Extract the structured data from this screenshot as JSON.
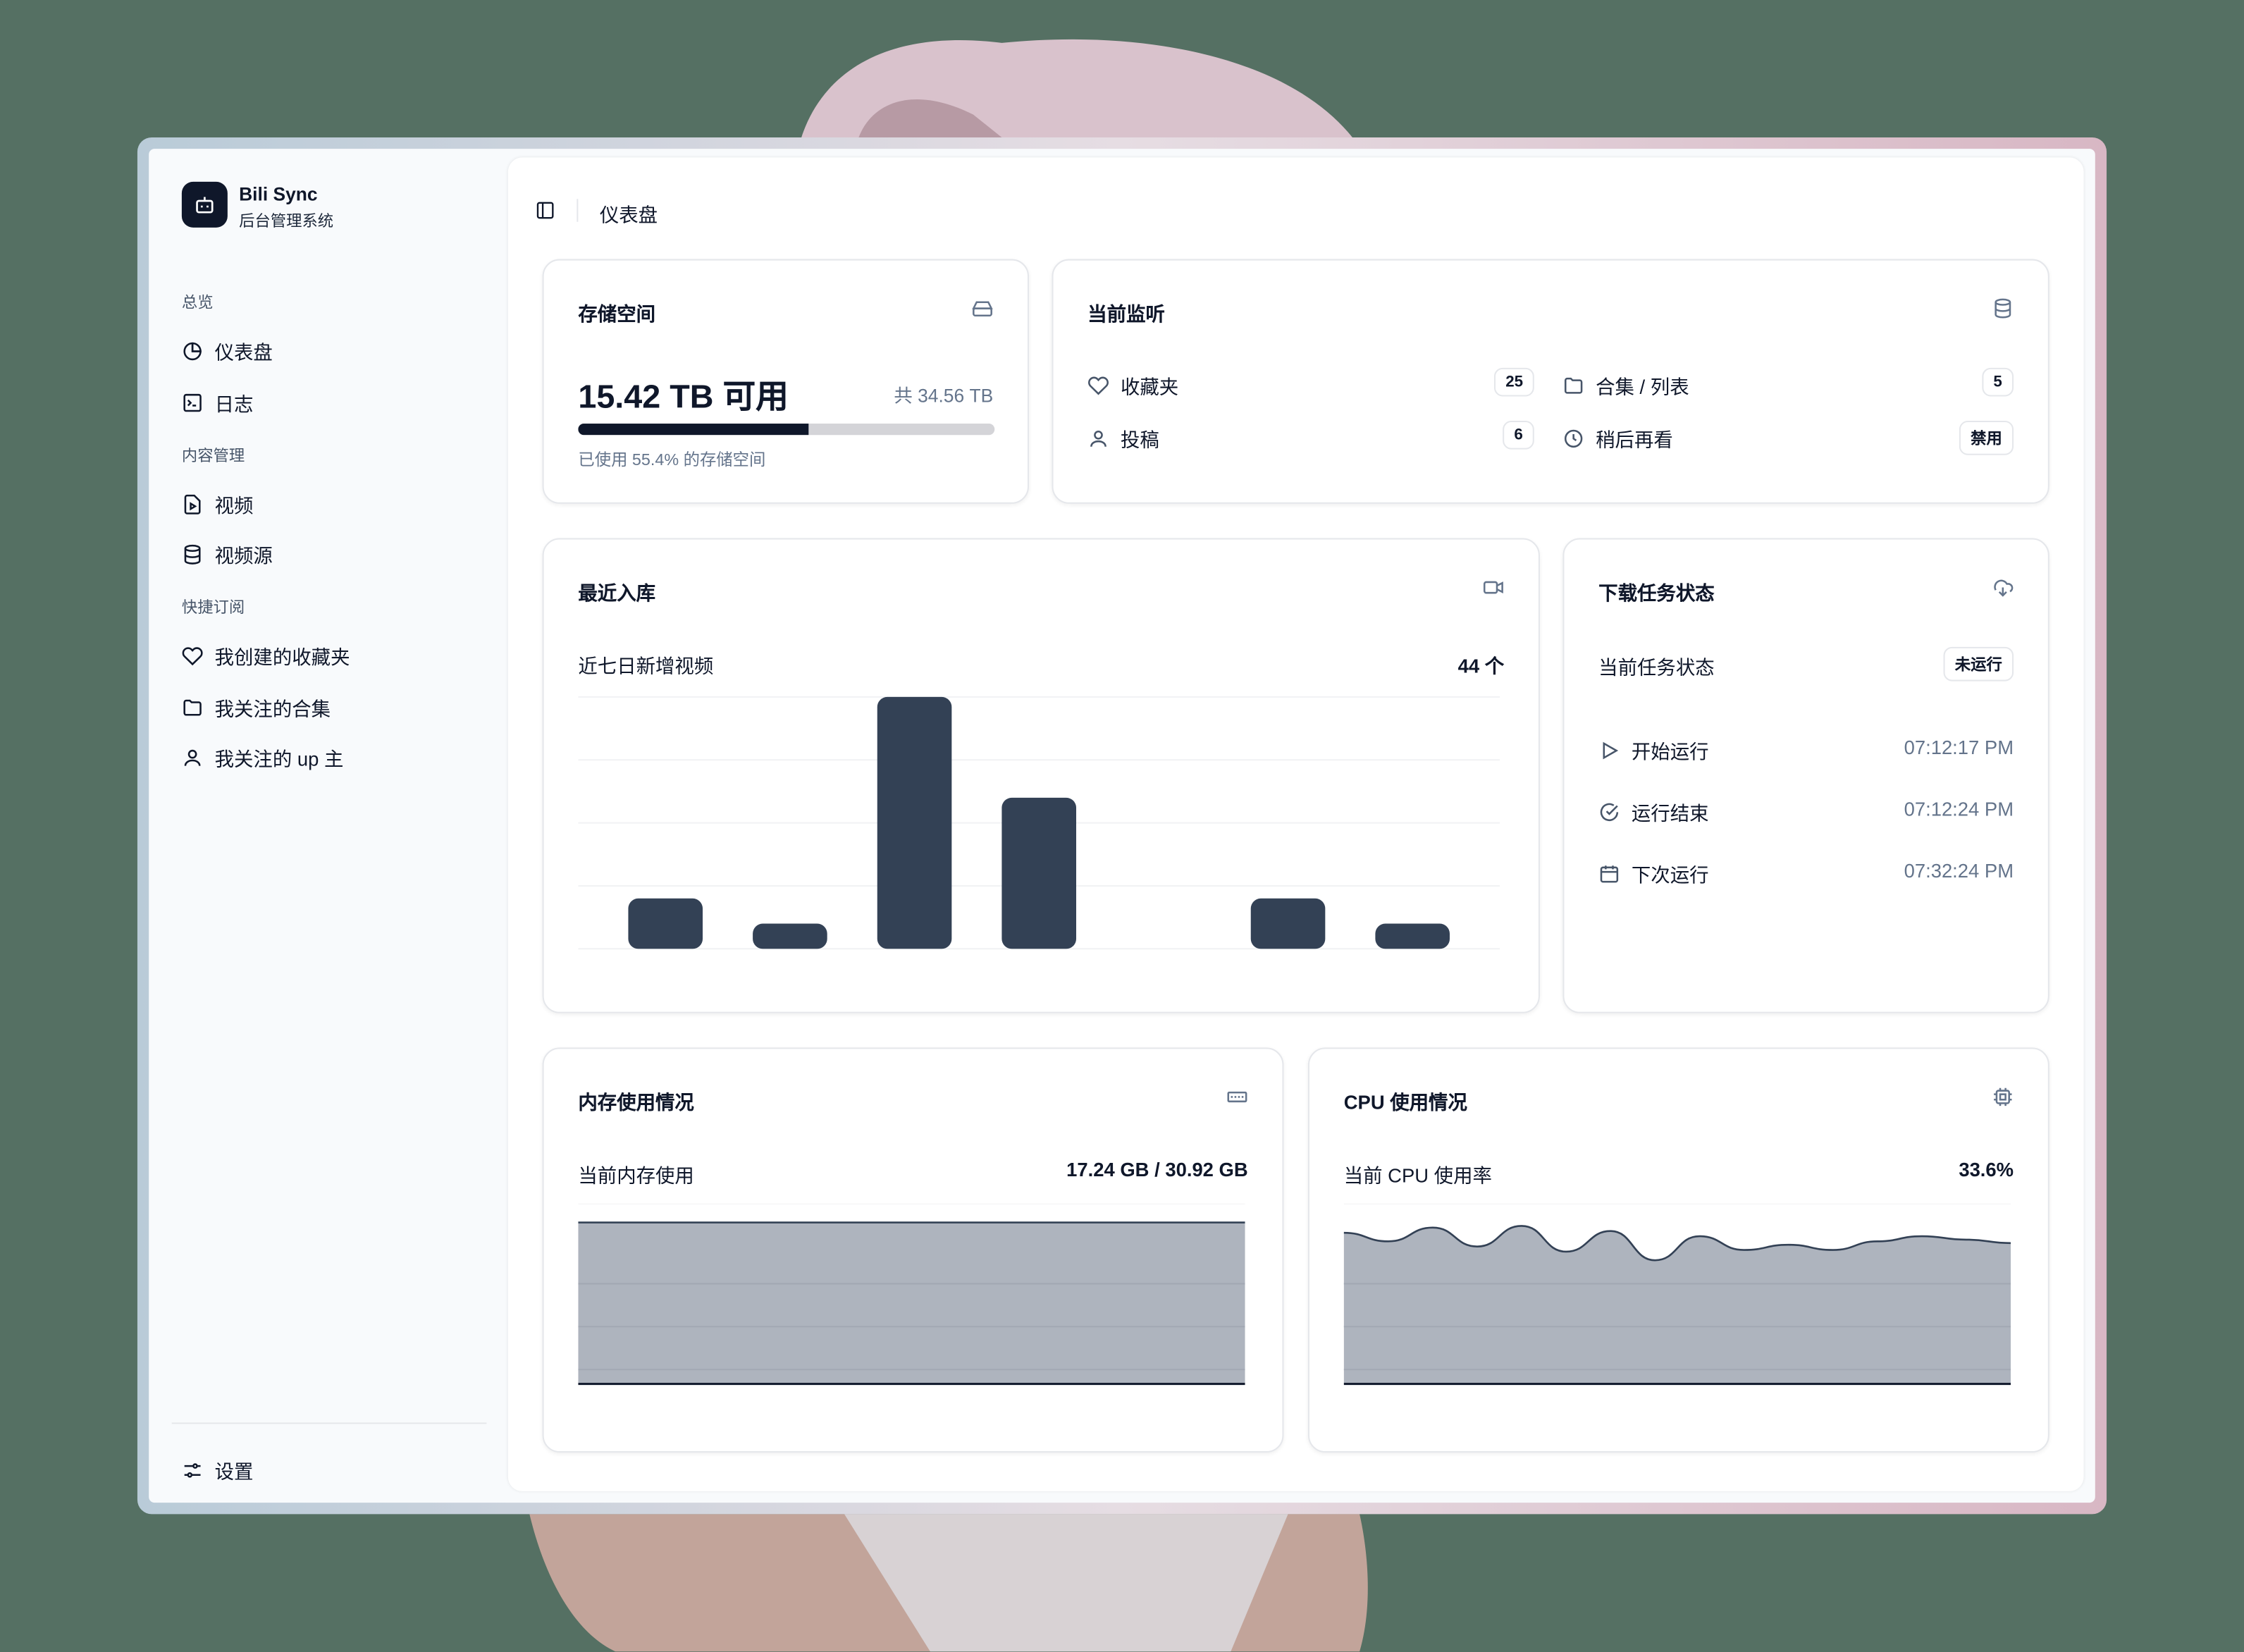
{
  "app": {
    "name": "Bili Sync",
    "subtitle": "后台管理系统",
    "logo_icon": "bot-icon"
  },
  "sidebar": {
    "groups": [
      {
        "label": "总览",
        "items": [
          {
            "label": "仪表盘",
            "icon": "pie-chart-icon"
          },
          {
            "label": "日志",
            "icon": "terminal-icon"
          }
        ]
      },
      {
        "label": "内容管理",
        "items": [
          {
            "label": "视频",
            "icon": "file-video-icon"
          },
          {
            "label": "视频源",
            "icon": "database-icon"
          }
        ]
      },
      {
        "label": "快捷订阅",
        "items": [
          {
            "label": "我创建的收藏夹",
            "icon": "heart-icon"
          },
          {
            "label": "我关注的合集",
            "icon": "folder-icon"
          },
          {
            "label": "我关注的 up 主",
            "icon": "user-icon"
          }
        ]
      }
    ],
    "settings": {
      "label": "设置",
      "icon": "settings-sliders-icon"
    }
  },
  "header": {
    "breadcrumb": "仪表盘",
    "toggle_icon": "sidebar-toggle-icon"
  },
  "storage": {
    "title": "存储空间",
    "available": "15.42 TB 可用",
    "total": "共 34.56 TB",
    "used_percent": 55.4,
    "used_text": "已使用 55.4% 的存储空间",
    "icon": "hard-drive-icon"
  },
  "monitor": {
    "title": "当前监听",
    "icon": "database-icon",
    "items": [
      {
        "label": "收藏夹",
        "value": "25",
        "icon": "heart-icon"
      },
      {
        "label": "合集 / 列表",
        "value": "5",
        "icon": "folder-icon"
      },
      {
        "label": "投稿",
        "value": "6",
        "icon": "user-icon"
      },
      {
        "label": "稍后再看",
        "value": "禁用",
        "icon": "clock-icon"
      }
    ]
  },
  "recent": {
    "title": "最近入库",
    "label": "近七日新增视频",
    "count": "44 个",
    "icon": "video-icon"
  },
  "tasks": {
    "title": "下载任务状态",
    "icon": "cloud-download-icon",
    "status_label": "当前任务状态",
    "status": "未运行",
    "items": [
      {
        "label": "开始运行",
        "time": "07:12:17 PM",
        "icon": "play-icon"
      },
      {
        "label": "运行结束",
        "time": "07:12:24 PM",
        "icon": "check-circle-icon"
      },
      {
        "label": "下次运行",
        "time": "07:32:24 PM",
        "icon": "calendar-icon"
      }
    ]
  },
  "memory": {
    "title": "内存使用情况",
    "label": "当前内存使用",
    "value": "17.24 GB / 30.92 GB",
    "icon": "memory-stick-icon"
  },
  "cpu": {
    "title": "CPU 使用情况",
    "label": "当前 CPU 使用率",
    "value": "33.6%",
    "icon": "cpu-icon"
  },
  "colors": {
    "background": "#557063",
    "bar": "#334155",
    "area": "#aeb4be",
    "progress": "#0f172a"
  },
  "chart_data": [
    {
      "type": "bar",
      "values": [
        4,
        2,
        20,
        12,
        0,
        4,
        2
      ],
      "ylim": [
        0,
        20
      ],
      "grid": true
    },
    {
      "type": "area",
      "values": [
        94,
        94,
        94,
        94,
        94,
        94,
        94,
        94,
        94,
        94,
        94,
        94
      ],
      "ylim": [
        0,
        100
      ],
      "grid": true
    },
    {
      "type": "area",
      "values": [
        88,
        83,
        91,
        80,
        92,
        77,
        89,
        72,
        86,
        78,
        81,
        78,
        83,
        86,
        84,
        82
      ],
      "ylim": [
        0,
        100
      ],
      "grid": true
    }
  ]
}
